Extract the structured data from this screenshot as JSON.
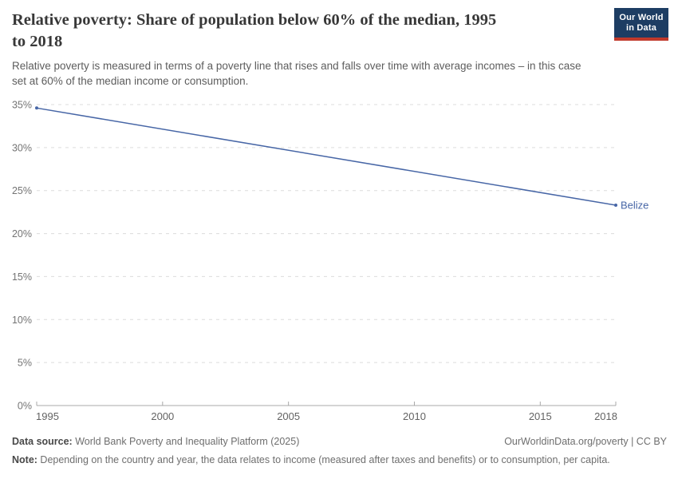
{
  "header": {
    "title": "Relative poverty: Share of population below 60% of the median, 1995\nto 2018",
    "subtitle": "Relative poverty is measured in terms of a poverty line that rises and falls over time with average incomes – in this case\nset at 60% of the median income or consumption.",
    "logo": {
      "line1": "Our World",
      "line2": "in Data"
    }
  },
  "chart_data": {
    "type": "line",
    "title": "Relative poverty: Share of population below 60% of the median, 1995 to 2018",
    "x": [
      1995,
      2018
    ],
    "series": [
      {
        "name": "Belize",
        "values": [
          34.6,
          23.3
        ],
        "color": "#4766A6"
      }
    ],
    "xlabel": "",
    "ylabel": "",
    "xlim": [
      1995,
      2018
    ],
    "ylim": [
      0,
      35
    ],
    "yticks": [
      0,
      5,
      10,
      15,
      20,
      25,
      30,
      35
    ],
    "ytick_suffix": "%",
    "xticks": [
      1995,
      2000,
      2005,
      2010,
      2015,
      2018
    ],
    "grid": "horizontal-dashed",
    "legend_position": "end-of-line-label"
  },
  "footer": {
    "data_source_label": "Data source:",
    "data_source_value": " World Bank Poverty and Inequality Platform (2025)",
    "link": "OurWorldinData.org/poverty | CC BY",
    "note_label": "Note:",
    "note_value": " Depending on the country and year, the data relates to income (measured after taxes and benefits) or to consumption, per capita."
  },
  "colors": {
    "line": "#4766A6",
    "logo_bg": "#1d3d63",
    "logo_stripe": "#c0392b",
    "gridline": "#dcdcdc",
    "axis": "#a8a8a8"
  }
}
